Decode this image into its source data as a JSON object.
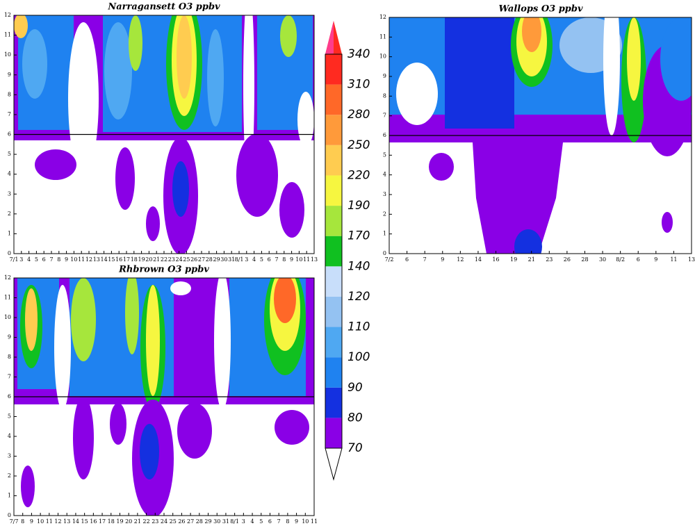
{
  "panels": [
    {
      "title": "Narragansett O3 ppbv",
      "xticks": [
        "7/1",
        "3",
        "4",
        "5",
        "6",
        "7",
        "8",
        "9",
        "10",
        "11",
        "12",
        "13",
        "14",
        "15",
        "16",
        "17",
        "18",
        "19",
        "20",
        "21",
        "22",
        "23",
        "24",
        "25",
        "26",
        "27",
        "28",
        "29",
        "30",
        "31",
        "8/1",
        "3",
        "4",
        "5",
        "6",
        "7",
        "8",
        "9",
        "10",
        "11",
        "13"
      ],
      "ylim": [
        0,
        12
      ],
      "yticks": [
        0,
        1,
        2,
        3,
        4,
        5,
        6,
        7,
        8,
        9,
        10,
        11,
        12
      ],
      "hline": 6
    },
    {
      "title": "Wallops O3 ppbv",
      "xticks": [
        "7/2",
        "6",
        "7",
        "9",
        "12",
        "14",
        "16",
        "19",
        "21",
        "23",
        "26",
        "28",
        "30",
        "8/2",
        "6",
        "9",
        "11",
        "13"
      ],
      "ylim": [
        0,
        12
      ],
      "yticks": [
        0,
        1,
        2,
        3,
        4,
        5,
        6,
        7,
        8,
        9,
        10,
        11,
        12
      ],
      "hline": 6
    },
    {
      "title": "Rhbrown O3 ppbv",
      "xticks": [
        "7/7",
        "8",
        "9",
        "10",
        "11",
        "12",
        "13",
        "14",
        "15",
        "16",
        "17",
        "18",
        "19",
        "20",
        "21",
        "22",
        "23",
        "24",
        "25",
        "26",
        "27",
        "28",
        "29",
        "30",
        "31",
        "8/1",
        "3",
        "4",
        "5",
        "6",
        "7",
        "8",
        "9",
        "10",
        "11"
      ],
      "ylim": [
        0,
        12
      ],
      "yticks": [
        0,
        1,
        2,
        3,
        4,
        5,
        6,
        7,
        8,
        9,
        10,
        11,
        12
      ],
      "hline": 6
    }
  ],
  "colorbar": {
    "levels": [
      70,
      80,
      90,
      100,
      110,
      120,
      140,
      170,
      190,
      220,
      250,
      280,
      310,
      340
    ],
    "colors": [
      "#ffffff",
      "#8a00e6",
      "#1430e0",
      "#1f82f0",
      "#4fa8f2",
      "#94c2f2",
      "#c8defa",
      "#10c020",
      "#a6e63c",
      "#f6f640",
      "#ffcc50",
      "#ff9a3a",
      "#ff6828",
      "#ff2a20",
      "#ff3c8c"
    ]
  }
}
